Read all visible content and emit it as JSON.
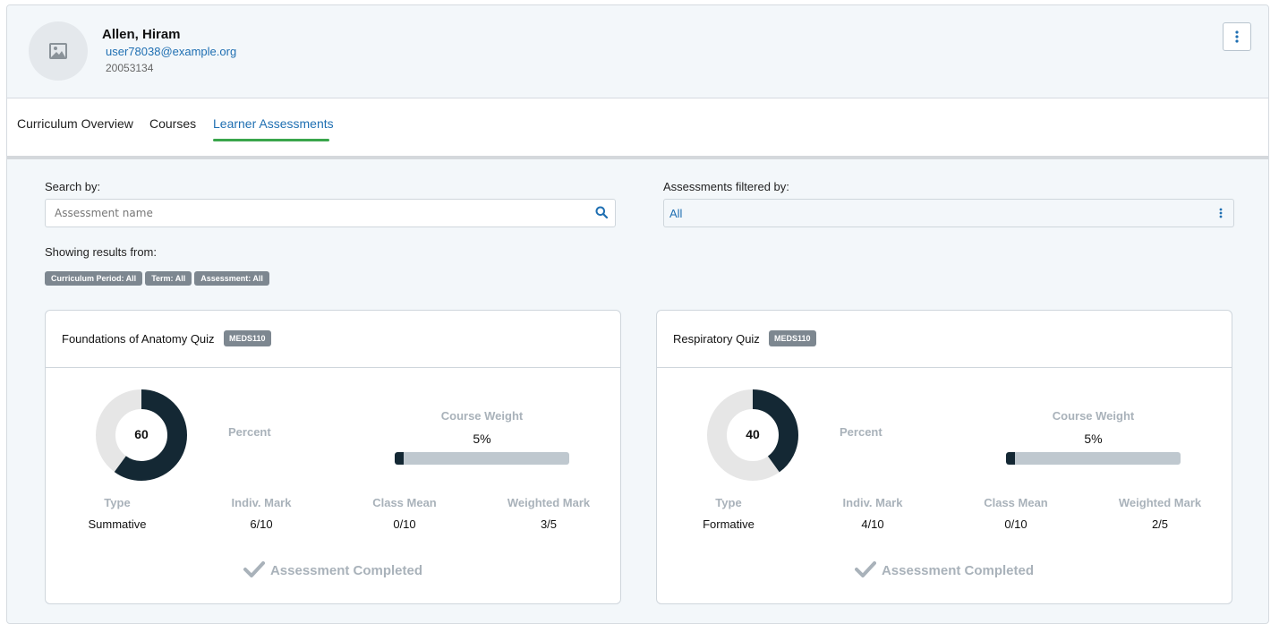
{
  "profile": {
    "name": "Allen, Hiram",
    "email": "user78038@example.org",
    "id": "20053134"
  },
  "tabs": [
    {
      "label": "Curriculum Overview"
    },
    {
      "label": "Courses"
    },
    {
      "label": "Learner Assessments"
    }
  ],
  "active_tab": "Learner Assessments",
  "search": {
    "label": "Search by:",
    "placeholder": "Assessment name"
  },
  "filter": {
    "label": "Assessments filtered by:",
    "value": "All"
  },
  "results": {
    "label": "Showing results from:",
    "chips": [
      "Curriculum Period: All",
      "Term: All",
      "Assessment: All"
    ]
  },
  "cards": [
    {
      "title": "Foundations of Anatomy Quiz",
      "badge": "MEDS110",
      "percent": 60,
      "percent_label": "Percent",
      "course_weight_label": "Course Weight",
      "course_weight": "5%",
      "course_weight_value": 0.05,
      "type_label": "Type",
      "type": "Summative",
      "indiv_label": "Indiv. Mark",
      "indiv": "6/10",
      "mean_label": "Class Mean",
      "mean": "0/10",
      "weighted_label": "Weighted Mark",
      "weighted": "3/5",
      "status": "Assessment Completed"
    },
    {
      "title": "Respiratory Quiz",
      "badge": "MEDS110",
      "percent": 40,
      "percent_label": "Percent",
      "course_weight_label": "Course Weight",
      "course_weight": "5%",
      "course_weight_value": 0.05,
      "type_label": "Type",
      "type": "Formative",
      "indiv_label": "Indiv. Mark",
      "indiv": "4/10",
      "mean_label": "Class Mean",
      "mean": "0/10",
      "weighted_label": "Weighted Mark",
      "weighted": "2/5",
      "status": "Assessment Completed"
    }
  ],
  "colors": {
    "accent": "#1f6fb2",
    "tab_underline": "#3aa64c",
    "donut_fill": "#142834",
    "donut_track": "#e6e6e6",
    "chip_bg": "#7d8790",
    "muted": "#a9b2ba"
  },
  "icons": {
    "avatar": "image-placeholder-icon",
    "menu": "kebab-menu-icon",
    "search": "search-icon",
    "filter": "kebab-menu-icon",
    "status": "checkmark-icon"
  }
}
